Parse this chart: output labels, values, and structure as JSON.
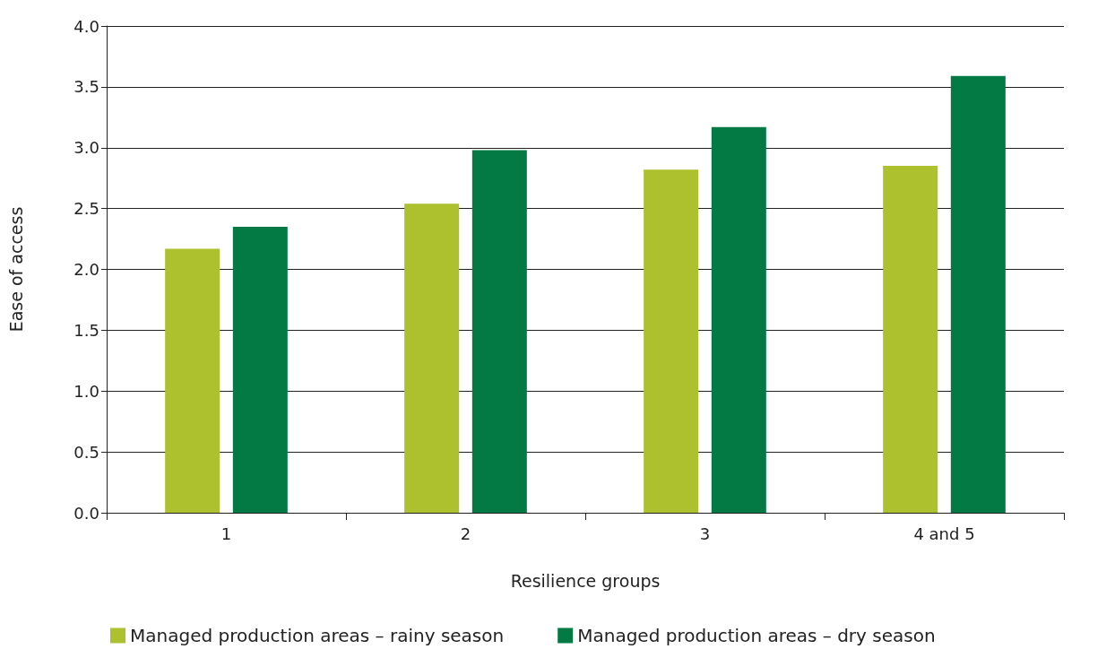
{
  "chart_data": {
    "type": "bar",
    "xlabel": "Resilience groups",
    "ylabel": "Ease of access",
    "categories": [
      "1",
      "2",
      "3",
      "4 and 5"
    ],
    "series": [
      {
        "name": "Managed production areas – rainy season",
        "color": "#adc02d",
        "values": [
          2.17,
          2.54,
          2.82,
          2.85
        ]
      },
      {
        "name": "Managed production areas – dry season",
        "color": "#037a43",
        "values": [
          2.35,
          2.98,
          3.17,
          3.59
        ]
      }
    ],
    "ylim": [
      0,
      4
    ],
    "yticks": [
      {
        "value": 0,
        "label": "0.0"
      },
      {
        "value": 0.5,
        "label": "0.5"
      },
      {
        "value": 1,
        "label": "1.0"
      },
      {
        "value": 1.5,
        "label": "1.5"
      },
      {
        "value": 2,
        "label": "2.0"
      },
      {
        "value": 2.5,
        "label": "2.5"
      },
      {
        "value": 3,
        "label": "3.0"
      },
      {
        "value": 3.5,
        "label": "3.5"
      },
      {
        "value": 4,
        "label": "4.0"
      }
    ],
    "grid": "y",
    "legend": "bottom"
  }
}
